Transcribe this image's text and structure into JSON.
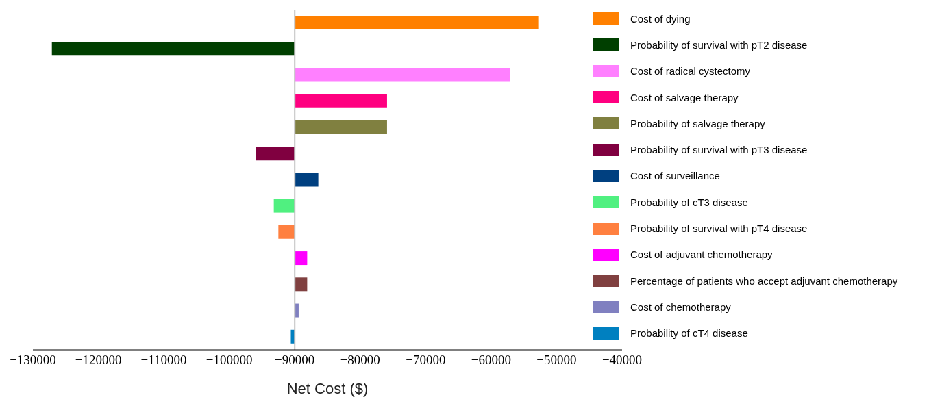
{
  "chart_data": {
    "type": "bar",
    "orientation": "horizontal",
    "xlabel": "Net Cost ($)",
    "categories": [
      null,
      null,
      null,
      null,
      null,
      null,
      null,
      null,
      null,
      null,
      null,
      null,
      null
    ],
    "series": [
      {
        "name": "Cost of dying",
        "color": "#ff8000",
        "values": [
          37300,
          null,
          null,
          null,
          null,
          null,
          null,
          null,
          null,
          null,
          null,
          null,
          null
        ],
        "base": [
          -90000,
          null,
          null,
          null,
          null,
          null,
          null,
          null,
          null,
          null,
          null,
          null,
          null
        ]
      },
      {
        "name": "Probability of survival with pT2 disease",
        "color": "#003f00",
        "values": [
          null,
          -37100,
          null,
          null,
          null,
          null,
          null,
          null,
          null,
          null,
          null,
          null,
          null
        ],
        "base": [
          null,
          -90000,
          null,
          null,
          null,
          null,
          null,
          null,
          null,
          null,
          null,
          null,
          null
        ]
      },
      {
        "name": "Cost of radical cystectomy",
        "color": "#ff80ff",
        "values": [
          null,
          null,
          32900,
          null,
          null,
          null,
          null,
          null,
          null,
          null,
          null,
          null,
          null
        ],
        "base": [
          null,
          null,
          -90000,
          null,
          null,
          null,
          null,
          null,
          null,
          null,
          null,
          null,
          null
        ]
      },
      {
        "name": "Cost of salvage therapy",
        "color": "#ff0080",
        "values": [
          null,
          null,
          null,
          14100,
          null,
          null,
          null,
          null,
          null,
          null,
          null,
          null,
          null
        ],
        "base": [
          null,
          null,
          null,
          -90000,
          null,
          null,
          null,
          null,
          null,
          null,
          null,
          null,
          null
        ]
      },
      {
        "name": "Probability of salvage therapy",
        "color": "#808040",
        "values": [
          null,
          null,
          null,
          null,
          14100,
          null,
          null,
          null,
          null,
          null,
          null,
          null,
          null
        ],
        "base": [
          null,
          null,
          null,
          null,
          -90000,
          null,
          null,
          null,
          null,
          null,
          null,
          null,
          null
        ]
      },
      {
        "name": "Probability of survival with pT3 disease",
        "color": "#800040",
        "values": [
          null,
          null,
          null,
          null,
          null,
          -5900,
          null,
          null,
          null,
          null,
          null,
          null,
          null
        ],
        "base": [
          null,
          null,
          null,
          null,
          null,
          -90000,
          null,
          null,
          null,
          null,
          null,
          null,
          null
        ]
      },
      {
        "name": "Cost of surveillance",
        "color": "#004080",
        "values": [
          null,
          null,
          null,
          null,
          null,
          null,
          3600,
          null,
          null,
          null,
          null,
          null,
          null
        ],
        "base": [
          null,
          null,
          null,
          null,
          null,
          null,
          -90000,
          null,
          null,
          null,
          null,
          null,
          null
        ]
      },
      {
        "name": "Probability of cT3 disease",
        "color": "#50f080",
        "values": [
          null,
          null,
          null,
          null,
          null,
          null,
          null,
          -3200,
          null,
          null,
          null,
          null,
          null
        ],
        "base": [
          null,
          null,
          null,
          null,
          null,
          null,
          null,
          -90000,
          null,
          null,
          null,
          null,
          null
        ]
      },
      {
        "name": "Probability of survival with pT4 disease",
        "color": "#ff8040",
        "values": [
          null,
          null,
          null,
          null,
          null,
          null,
          null,
          null,
          -2500,
          null,
          null,
          null,
          null
        ],
        "base": [
          null,
          null,
          null,
          null,
          null,
          null,
          null,
          null,
          -90000,
          null,
          null,
          null,
          null
        ]
      },
      {
        "name": "Cost of adjuvant chemotherapy",
        "color": "#ff00ff",
        "values": [
          null,
          null,
          null,
          null,
          null,
          null,
          null,
          null,
          null,
          1900,
          null,
          null,
          null
        ],
        "base": [
          null,
          null,
          null,
          null,
          null,
          null,
          null,
          null,
          null,
          -90000,
          null,
          null,
          null
        ]
      },
      {
        "name": "Percentage of patients who accept adjuvant chemotherapy",
        "color": "#804040",
        "values": [
          null,
          null,
          null,
          null,
          null,
          null,
          null,
          null,
          null,
          null,
          1900,
          null,
          null
        ],
        "base": [
          null,
          null,
          null,
          null,
          null,
          null,
          null,
          null,
          null,
          null,
          -90000,
          null,
          null
        ]
      },
      {
        "name": "Cost of chemotherapy",
        "color": "#8080c0",
        "values": [
          null,
          null,
          null,
          null,
          null,
          null,
          null,
          null,
          null,
          null,
          null,
          600,
          null
        ],
        "base": [
          null,
          null,
          null,
          null,
          null,
          null,
          null,
          null,
          null,
          null,
          null,
          -90000,
          null
        ]
      },
      {
        "name": "Probability of cT4 disease",
        "color": "#0080c0",
        "values": [
          null,
          null,
          null,
          null,
          null,
          null,
          null,
          null,
          null,
          null,
          null,
          null,
          -600
        ],
        "base": [
          null,
          null,
          null,
          null,
          null,
          null,
          null,
          null,
          null,
          null,
          null,
          null,
          -90000
        ]
      }
    ],
    "xlim": [
      -130000,
      -40000
    ],
    "xticks": [
      -130000,
      -120000,
      -110000,
      -100000,
      -90000,
      -80000,
      -70000,
      -60000,
      -50000,
      -40000
    ],
    "ref_lines": [
      {
        "axis": "x",
        "value": -90000,
        "color": "#c0c0c0"
      }
    ],
    "legend": "right",
    "tick_labels": "x"
  }
}
